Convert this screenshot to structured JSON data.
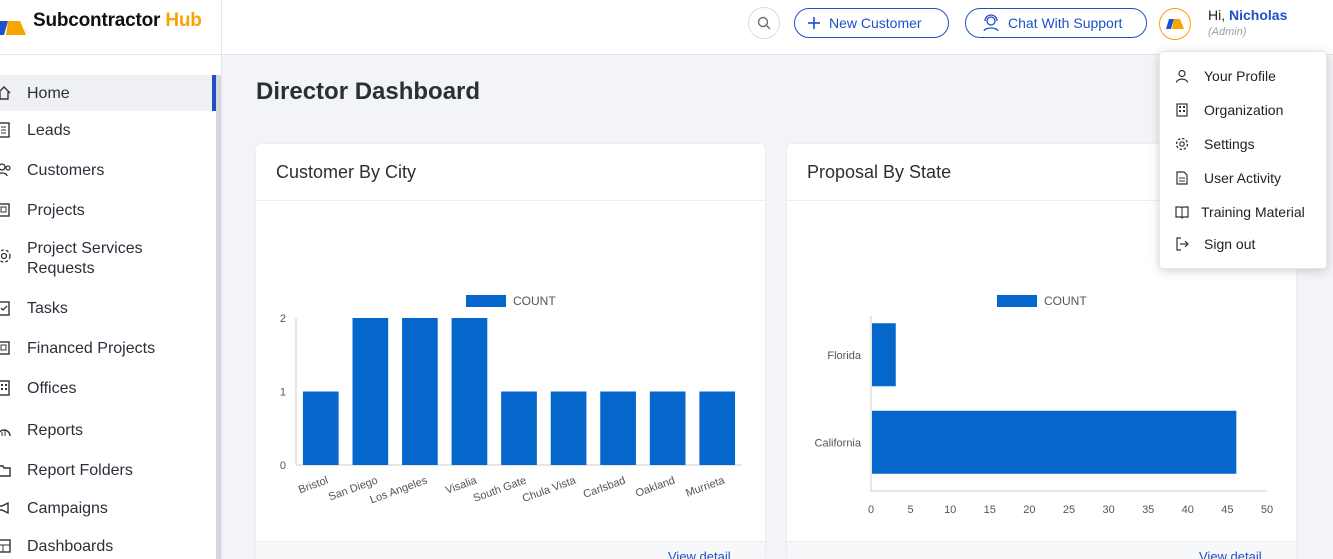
{
  "brand": {
    "name_main": "Subcontractor",
    "name_accent": "Hub",
    "accent_color": "#f6a400"
  },
  "header": {
    "new_customer_label": "New Customer",
    "chat_label": "Chat With Support",
    "greeting": "Hi,",
    "user_name": "Nicholas",
    "user_role": "(Admin)"
  },
  "sidebar": {
    "items": [
      {
        "label": "Home",
        "icon": "home-icon",
        "active": true
      },
      {
        "label": "Leads",
        "icon": "leads-icon"
      },
      {
        "label": "Customers",
        "icon": "customers-icon"
      },
      {
        "label": "Projects",
        "icon": "projects-icon"
      },
      {
        "label": "Project Services Requests",
        "icon": "gear-icon"
      },
      {
        "label": "Tasks",
        "icon": "tasks-icon"
      },
      {
        "label": "Financed Projects",
        "icon": "financed-icon"
      },
      {
        "label": "Offices",
        "icon": "offices-icon"
      },
      {
        "label": "Reports",
        "icon": "reports-icon"
      },
      {
        "label": "Report Folders",
        "icon": "folder-icon"
      },
      {
        "label": "Campaigns",
        "icon": "megaphone-icon"
      },
      {
        "label": "Dashboards",
        "icon": "dashboard-icon"
      }
    ]
  },
  "main": {
    "page_title": "Director Dashboard"
  },
  "cards": {
    "city": {
      "title": "Customer By City",
      "link": "View detail"
    },
    "state": {
      "title": "Proposal By State",
      "link": "View detail"
    }
  },
  "dropdown": {
    "items": [
      {
        "label": "Your Profile",
        "icon": "user-icon"
      },
      {
        "label": "Organization",
        "icon": "building-icon"
      },
      {
        "label": "Settings",
        "icon": "gear-icon"
      },
      {
        "label": "User Activity",
        "icon": "document-icon"
      },
      {
        "label": "Training Material",
        "icon": "book-icon"
      },
      {
        "label": "Sign out",
        "icon": "signout-icon"
      }
    ]
  },
  "chart_data": [
    {
      "type": "bar",
      "orientation": "vertical",
      "categories": [
        "Bristol",
        "San Diego",
        "Los Angeles",
        "Visalia",
        "South Gate",
        "Chula Vista",
        "Carlsbad",
        "Oakland",
        "Murrieta"
      ],
      "series": [
        {
          "name": "COUNT",
          "values": [
            1,
            2,
            2,
            2,
            1,
            1,
            1,
            1,
            1
          ]
        }
      ],
      "ylim": [
        0,
        2
      ],
      "yticks": [
        0,
        1,
        2
      ],
      "legend": "top",
      "color": "#0566cc"
    },
    {
      "type": "bar",
      "orientation": "horizontal",
      "categories": [
        "Florida",
        "California"
      ],
      "series": [
        {
          "name": "COUNT",
          "values": [
            3,
            46
          ]
        }
      ],
      "xlim": [
        0,
        50
      ],
      "xticks": [
        0,
        5,
        10,
        15,
        20,
        25,
        30,
        35,
        40,
        45,
        50
      ],
      "legend": "top",
      "color": "#0566cc"
    }
  ]
}
